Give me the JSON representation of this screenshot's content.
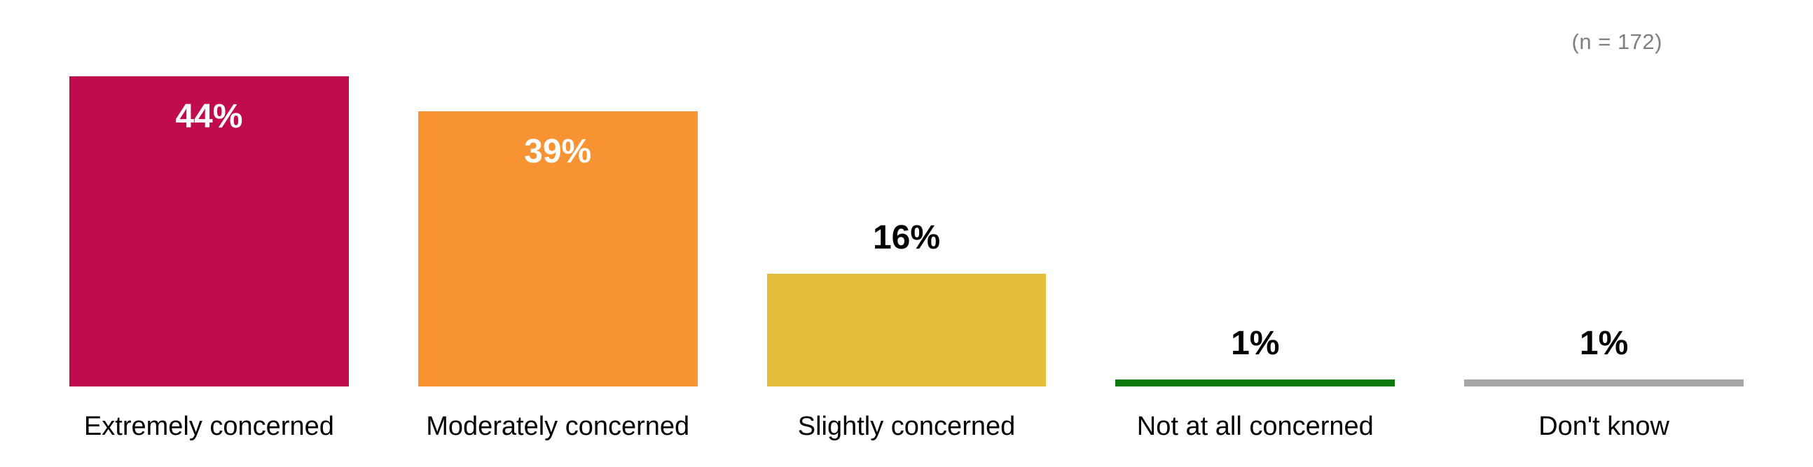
{
  "note": "(n = 172)",
  "note_color": "#7f7f7f",
  "chart_data": {
    "type": "bar",
    "title": "",
    "xlabel": "",
    "ylabel": "",
    "categories": [
      "Extremely concerned",
      "Moderately concerned",
      "Slightly concerned",
      "Not at all concerned",
      "Don't know"
    ],
    "values": [
      44,
      39,
      16,
      1,
      1
    ],
    "value_labels": [
      "44%",
      "39%",
      "16%",
      "1%",
      "1%"
    ],
    "bar_colors": [
      "#C00B4E",
      "#F79333",
      "#E2BE3A",
      "#0E7A0E",
      "#A6A6A6"
    ],
    "value_label_colors": [
      "#FFFFFF",
      "#FFFFFF",
      "#000000",
      "#000000",
      "#000000"
    ],
    "label_positions": [
      "inside",
      "inside",
      "outside",
      "outside",
      "outside"
    ],
    "ylim": [
      0,
      44
    ],
    "grid": false,
    "axis_lines": false,
    "legend": "none",
    "annotation": "(n = 172)"
  }
}
